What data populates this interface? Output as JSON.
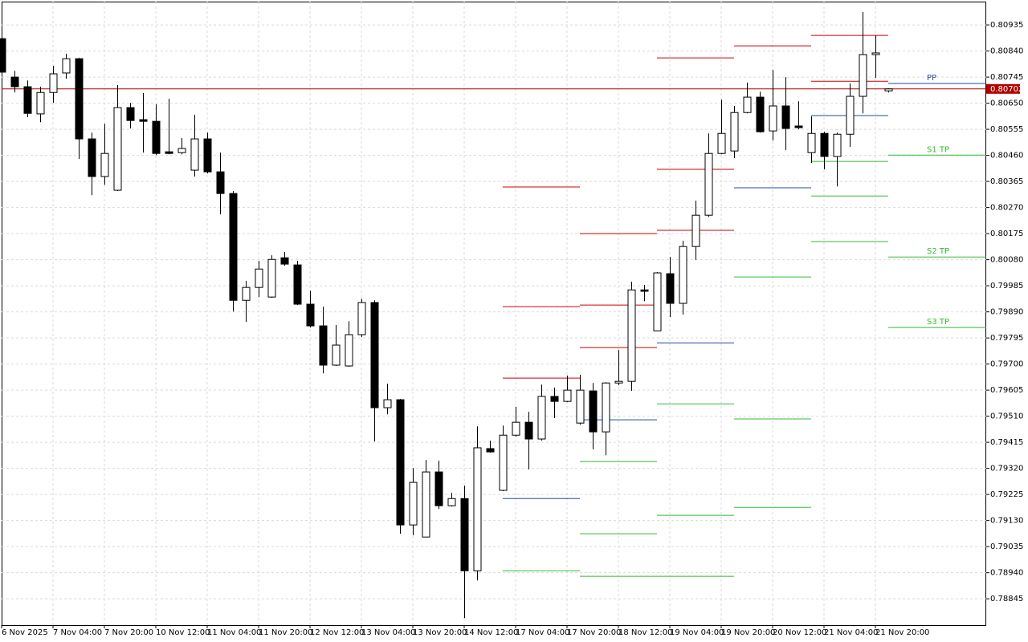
{
  "chart_data": {
    "type": "candlestick",
    "categories": [
      "6 Nov 2025",
      null,
      null,
      null,
      "7 Nov 04:00",
      null,
      null,
      null,
      "7 Nov 20:00",
      null,
      null,
      null,
      "10 Nov 12:00",
      null,
      null,
      null,
      "11 Nov 04:00",
      null,
      null,
      null,
      "11 Nov 20:00",
      null,
      null,
      null,
      "12 Nov 12:00",
      null,
      null,
      null,
      "13 Nov 04:00",
      null,
      null,
      null,
      "13 Nov 20:00",
      null,
      null,
      null,
      "14 Nov 12:00",
      null,
      null,
      null,
      "17 Nov 04:00",
      null,
      null,
      null,
      "17 Nov 20:00",
      null,
      null,
      null,
      "18 Nov 12:00",
      null,
      null,
      null,
      "19 Nov 04:00",
      null,
      null,
      null,
      "19 Nov 20:00",
      null,
      null,
      null,
      "20 Nov 12:00",
      null,
      null,
      null,
      "21 Nov 04:00",
      null,
      null,
      null,
      "21 Nov 20:00",
      null
    ],
    "open": [
      0.80885,
      0.80745,
      0.8071,
      0.80611,
      0.80689,
      0.8076,
      0.80812,
      0.8052,
      0.80383,
      0.80333,
      0.80634,
      0.8059,
      0.80584,
      0.80473,
      0.8047,
      0.80406,
      0.8052,
      0.804,
      0.80321,
      0.79932,
      0.79979,
      0.79944,
      0.80087,
      0.80061,
      0.79918,
      0.79839,
      0.79696,
      0.79693,
      0.79807,
      0.79924,
      0.79541,
      0.7957,
      0.79114,
      0.7907,
      0.79307,
      0.79184,
      0.7921,
      0.78947,
      0.79392,
      0.7924,
      0.79441,
      0.79488,
      0.79427,
      0.79582,
      0.79564,
      0.79485,
      0.79602,
      0.79453,
      0.79631,
      0.79637,
      0.7997,
      0.79821,
      0.80029,
      0.79921,
      0.80128,
      0.80242,
      0.80467,
      0.80476,
      0.80616,
      0.80672,
      0.80549,
      0.8064,
      0.80567,
      0.8047,
      0.8054,
      0.80456,
      0.80537,
      0.80675,
      0.80827,
      0.80695
    ],
    "high": [
      0.80894,
      0.80768,
      0.80733,
      0.8071,
      0.80786,
      0.8083,
      0.80815,
      0.80543,
      0.80575,
      0.80716,
      0.80651,
      0.80687,
      0.80646,
      0.80666,
      0.80523,
      0.80608,
      0.80543,
      0.8047,
      0.8033,
      0.80003,
      0.80076,
      0.80096,
      0.80108,
      0.80076,
      0.79967,
      0.79909,
      0.79842,
      0.79856,
      0.79938,
      0.79932,
      0.79628,
      0.79573,
      0.79321,
      0.79351,
      0.79348,
      0.79231,
      0.79257,
      0.79473,
      0.79421,
      0.79476,
      0.79544,
      0.79526,
      0.79625,
      0.79614,
      0.79658,
      0.79661,
      0.79631,
      0.79634,
      0.79751,
      0.8,
      0.79988,
      0.80035,
      0.8009,
      0.80149,
      0.80295,
      0.8054,
      0.80663,
      0.8064,
      0.80725,
      0.80692,
      0.80771,
      0.80745,
      0.80657,
      0.80602,
      0.80546,
      0.80543,
      0.80722,
      0.80982,
      0.80897,
      0.80704
    ],
    "low": [
      0.80748,
      0.80689,
      0.80599,
      0.80581,
      0.80651,
      0.80739,
      0.80447,
      0.80315,
      0.80353,
      0.8033,
      0.80558,
      0.8047,
      0.80461,
      0.80464,
      0.80464,
      0.80383,
      0.80394,
      0.80245,
      0.79891,
      0.79853,
      0.79944,
      0.79941,
      0.80058,
      0.79915,
      0.79833,
      0.79666,
      0.79693,
      0.7969,
      0.79798,
      0.79418,
      0.79517,
      0.79082,
      0.79076,
      0.7907,
      0.79172,
      0.79181,
      0.78775,
      0.78912,
      0.79377,
      0.79237,
      0.79436,
      0.79316,
      0.79421,
      0.79503,
      0.79561,
      0.79479,
      0.79389,
      0.79368,
      0.79623,
      0.79602,
      0.79929,
      0.79821,
      0.79871,
      0.7988,
      0.80079,
      0.80236,
      0.80464,
      0.8045,
      0.80613,
      0.80543,
      0.80514,
      0.80479,
      0.80555,
      0.80432,
      0.80409,
      0.80347,
      0.80491,
      0.80613,
      0.80742,
      0.80689
    ],
    "close": [
      0.80763,
      0.8071,
      0.80613,
      0.80689,
      0.80757,
      0.80812,
      0.8052,
      0.80383,
      0.80467,
      0.80634,
      0.80587,
      0.80584,
      0.80467,
      0.80467,
      0.80485,
      0.8052,
      0.804,
      0.80321,
      0.79932,
      0.79979,
      0.80046,
      0.80081,
      0.80064,
      0.79918,
      0.79839,
      0.79696,
      0.79769,
      0.79807,
      0.79924,
      0.79541,
      0.7957,
      0.79114,
      0.79269,
      0.79307,
      0.79184,
      0.7921,
      0.78947,
      0.79395,
      0.7938,
      0.79441,
      0.79488,
      0.79427,
      0.79582,
      0.79564,
      0.79605,
      0.79605,
      0.79453,
      0.79631,
      0.79637,
      0.7997,
      0.79965,
      0.80032,
      0.79921,
      0.80128,
      0.80242,
      0.80467,
      0.8054,
      0.80616,
      0.80672,
      0.80546,
      0.8064,
      0.80558,
      0.80561,
      0.8054,
      0.80456,
      0.80537,
      0.80675,
      0.80827,
      0.80833,
      0.80702
    ],
    "up_color": "#ffffff",
    "down_color": "#000000",
    "ylim": [
      0.78749,
      0.8102
    ],
    "yticks": [
      0.80935,
      {
        "value": 0.8084,
        "label": "0.80840"
      },
      0.80745,
      {
        "value": 0.8065,
        "label": "0.80650"
      },
      0.80555,
      {
        "value": 0.8046,
        "label": "0.80460"
      },
      0.80365,
      {
        "value": 0.8027,
        "label": "0.80270"
      },
      0.80175,
      {
        "value": 0.8008,
        "label": "0.80080"
      },
      0.79985,
      {
        "value": 0.7989,
        "label": "0.79890"
      },
      0.79795,
      {
        "value": 0.797,
        "label": "0.79700"
      },
      0.79605,
      {
        "value": 0.7951,
        "label": "0.79510"
      },
      0.79415,
      {
        "value": 0.7932,
        "label": "0.79320"
      },
      0.79225,
      {
        "value": 0.7913,
        "label": "0.79130"
      },
      0.79035,
      {
        "value": 0.7894,
        "label": "0.78940"
      },
      0.78845
    ],
    "grid": true,
    "current_price": 0.80702,
    "current_price_color": "#b00000",
    "pivots": [
      [
        {
          "value": 0.80345,
          "color": "#cc0000"
        },
        {
          "value": 0.79909,
          "color": "#cc0000"
        },
        {
          "value": 0.79649,
          "color": "#cc0000"
        },
        {
          "value": 0.7921,
          "color": "#1f4e9c"
        },
        {
          "value": 0.78947,
          "color": "#33bb33"
        }
      ],
      [
        {
          "value": 0.80175,
          "color": "#cc0000"
        },
        {
          "value": 0.79915,
          "color": "#cc0000"
        },
        {
          "value": 0.7976,
          "color": "#cc0000"
        },
        {
          "value": 0.79497,
          "color": "#1f4e9c"
        },
        {
          "value": 0.79345,
          "color": "#33bb33"
        },
        {
          "value": 0.79082,
          "color": "#33bb33"
        },
        {
          "value": 0.78927,
          "color": "#33bb33"
        }
      ],
      [
        {
          "value": 0.80815,
          "color": "#cc0000"
        },
        {
          "value": 0.80409,
          "color": "#cc0000"
        },
        {
          "value": 0.80187,
          "color": "#cc0000"
        },
        {
          "value": 0.79777,
          "color": "#1f4e9c"
        },
        {
          "value": 0.79555,
          "color": "#33bb33"
        },
        {
          "value": 0.79149,
          "color": "#33bb33"
        },
        {
          "value": 0.78927,
          "color": "#33bb33"
        }
      ],
      [
        {
          "value": 0.80859,
          "color": "#cc0000"
        },
        {
          "value": 0.80342,
          "color": "#1f4e9c"
        },
        {
          "value": 0.80017,
          "color": "#33bb33"
        },
        {
          "value": 0.795,
          "color": "#33bb33"
        },
        {
          "value": 0.79178,
          "color": "#33bb33"
        }
      ],
      [
        {
          "value": 0.80897,
          "color": "#cc0000"
        },
        {
          "value": 0.8073,
          "color": "#cc0000"
        },
        {
          "value": 0.80605,
          "color": "#1f4e9c"
        },
        {
          "value": 0.80438,
          "color": "#33bb33"
        },
        {
          "value": 0.80312,
          "color": "#33bb33"
        },
        {
          "value": 0.80146,
          "color": "#33bb33"
        }
      ],
      [
        {
          "value": 0.80722,
          "color": "#1f4e9c",
          "label": "PP"
        },
        {
          "value": 0.80461,
          "color": "#33bb33",
          "label": "S1 TP"
        },
        {
          "value": 0.8009,
          "color": "#33bb33",
          "label": "S2 TP"
        },
        {
          "value": 0.79833,
          "color": "#33bb33",
          "label": "S3 TP"
        }
      ]
    ]
  }
}
